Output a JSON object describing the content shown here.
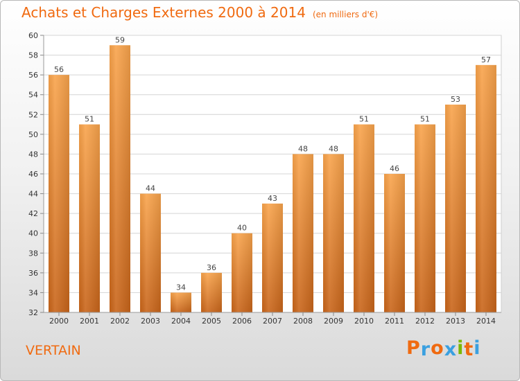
{
  "chart_data": {
    "type": "bar",
    "title": "Achats et Charges Externes 2000 à 2014",
    "unit_note": "(en milliers d'€)",
    "categories": [
      "2000",
      "2001",
      "2002",
      "2003",
      "2004",
      "2005",
      "2006",
      "2007",
      "2008",
      "2009",
      "2010",
      "2011",
      "2012",
      "2013",
      "2014"
    ],
    "values": [
      56,
      51,
      59,
      44,
      34,
      36,
      40,
      43,
      48,
      48,
      51,
      46,
      51,
      53,
      57
    ],
    "ylim": [
      32,
      60
    ],
    "yticks": [
      32,
      34,
      36,
      38,
      40,
      42,
      44,
      46,
      48,
      50,
      52,
      54,
      56,
      58,
      60
    ],
    "grid": true,
    "bar_color_top": "#f9a44c",
    "bar_color_bottom": "#c9651a"
  },
  "footer": {
    "city": "VERTAIN",
    "logo_letters": [
      "P",
      "r",
      "o",
      "x",
      "i",
      "t",
      "i"
    ],
    "logo_colors": [
      "#f06a10",
      "#3aa0e0",
      "#f06a10",
      "#3aa0e0",
      "#7ab800",
      "#f06a10",
      "#3aa0e0"
    ]
  }
}
